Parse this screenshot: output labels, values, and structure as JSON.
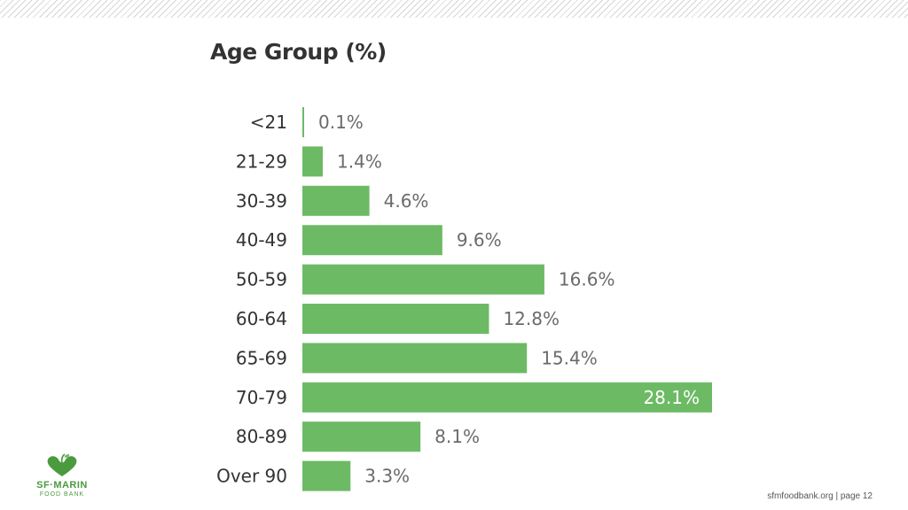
{
  "slide": {
    "footer": "sfmfoodbank.org | page 12",
    "logo": {
      "name": "SF·MARIN",
      "subtitle": "FOOD BANK",
      "icon": "heart-apple-icon"
    }
  },
  "colors": {
    "bar": "#6dba65",
    "accent": "#4a9a3e"
  },
  "chart_data": {
    "type": "bar",
    "orientation": "horizontal",
    "title": "Age Group (%)",
    "categories": [
      "<21",
      "21-29",
      "30-39",
      "40-49",
      "50-59",
      "60-64",
      "65-69",
      "70-79",
      "80-89",
      "Over 90"
    ],
    "values": [
      0.1,
      1.4,
      4.6,
      9.6,
      16.6,
      12.8,
      15.4,
      28.1,
      8.1,
      3.3
    ],
    "labels": [
      "0.1%",
      "1.4%",
      "4.6%",
      "9.6%",
      "16.6%",
      "12.8%",
      "15.4%",
      "28.1%",
      "8.1%",
      "3.3%"
    ],
    "xlim": [
      0,
      28.1
    ],
    "grid": false,
    "legend": "none"
  }
}
